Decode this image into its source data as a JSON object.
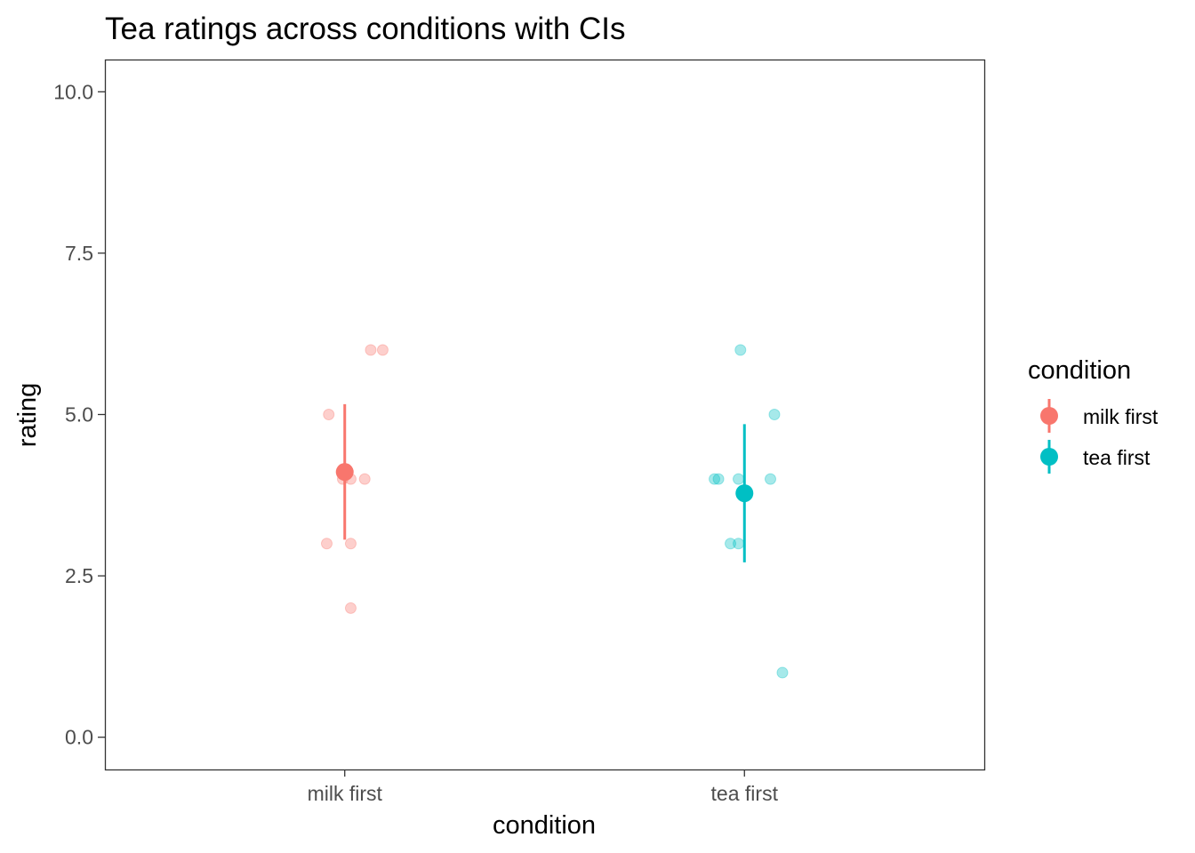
{
  "chart_data": {
    "type": "scatter",
    "title": "Tea ratings across conditions with CIs",
    "xlabel": "condition",
    "ylabel": "rating",
    "categories": [
      "milk first",
      "tea first"
    ],
    "ylim": [
      -0.5,
      10.5
    ],
    "yticks": [
      0.0,
      2.5,
      5.0,
      7.5,
      10.0
    ],
    "ytick_labels": [
      "0.0",
      "2.5",
      "5.0",
      "7.5",
      "10.0"
    ],
    "grid": false,
    "legend": {
      "title": "condition",
      "placement": "right",
      "entries": [
        "milk first",
        "tea first"
      ]
    },
    "colors": {
      "milk first": "#F8766D",
      "tea first": "#00BFC4"
    },
    "series": [
      {
        "name": "milk first",
        "category": "milk first",
        "points": [
          {
            "x": 1.065,
            "y": 6
          },
          {
            "x": 1.095,
            "y": 6
          },
          {
            "x": 0.96,
            "y": 5
          },
          {
            "x": 0.995,
            "y": 4
          },
          {
            "x": 1.015,
            "y": 4
          },
          {
            "x": 1.05,
            "y": 4
          },
          {
            "x": 0.955,
            "y": 3
          },
          {
            "x": 1.015,
            "y": 3
          },
          {
            "x": 1.015,
            "y": 2
          }
        ],
        "mean": 4.11,
        "ci": [
          3.06,
          5.16
        ]
      },
      {
        "name": "tea first",
        "category": "tea first",
        "points": [
          {
            "x": 1.99,
            "y": 6
          },
          {
            "x": 2.075,
            "y": 5
          },
          {
            "x": 1.925,
            "y": 4
          },
          {
            "x": 1.935,
            "y": 4
          },
          {
            "x": 1.985,
            "y": 4
          },
          {
            "x": 2.065,
            "y": 4
          },
          {
            "x": 1.965,
            "y": 3
          },
          {
            "x": 1.985,
            "y": 3
          },
          {
            "x": 2.095,
            "y": 1
          }
        ],
        "mean": 3.78,
        "ci": [
          2.71,
          4.85
        ]
      }
    ]
  }
}
